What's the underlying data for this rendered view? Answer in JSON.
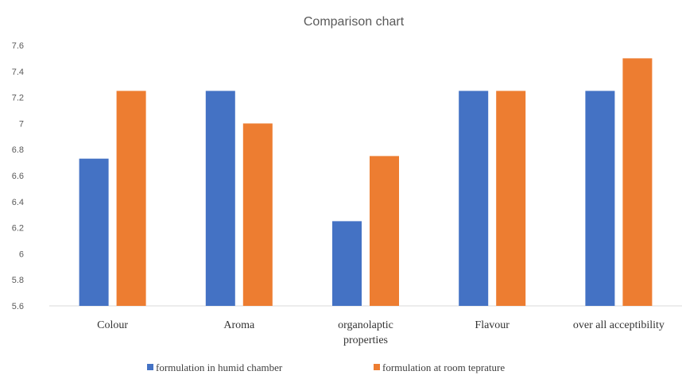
{
  "chart_data": {
    "type": "bar",
    "title": "Comparison chart",
    "categories": [
      [
        "Colour"
      ],
      [
        "Aroma"
      ],
      [
        "organolaptic",
        "properties"
      ],
      [
        "Flavour"
      ],
      [
        "over all acceptibility"
      ]
    ],
    "series": [
      {
        "name": "formulation in humid chamber",
        "color": "#4472C4",
        "values": [
          6.73,
          7.25,
          6.25,
          7.25,
          7.25
        ]
      },
      {
        "name": "formulation at room teprature",
        "color": "#ED7D31",
        "values": [
          7.25,
          7.0,
          6.75,
          7.25,
          7.5
        ]
      }
    ],
    "ylim": [
      5.6,
      7.6
    ],
    "yticks": [
      "5.6",
      "5.8",
      "6",
      "6.2",
      "6.4",
      "6.6",
      "6.8",
      "7",
      "7.2",
      "7.4",
      "7.6"
    ],
    "grid": false,
    "legend_position": "bottom"
  }
}
